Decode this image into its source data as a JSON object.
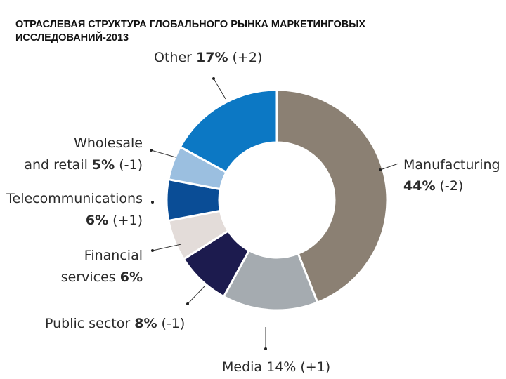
{
  "title_line1": "ОТРАСЛЕВАЯ СТРУКТУРА  ГЛОБАЛЬНОГО  РЫНКА  МАРКЕТИНГОВЫХ",
  "title_line2": "ИССЛЕДОВАНИЙ-2013",
  "chart_data": {
    "type": "pie",
    "variant": "donut",
    "start_angle_deg": 0,
    "direction": "clockwise",
    "segments": [
      {
        "name": "Manufacturing",
        "value": 44,
        "change": "(-2)",
        "color": "#8b8073",
        "label_lines": [
          [
            {
              "t": "Manufacturing",
              "b": false
            }
          ],
          [
            {
              "t": "44%",
              "b": true
            },
            {
              "t": " (-2)",
              "b": false
            }
          ]
        ]
      },
      {
        "name": "Media",
        "value": 14,
        "change": "(+1)",
        "color": "#a5abb0",
        "label_lines": [
          [
            {
              "t": "Media 14% (+1)",
              "b": false
            }
          ]
        ]
      },
      {
        "name": "Public sector",
        "value": 8,
        "change": "(-1)",
        "color": "#1c1b4e",
        "label_lines": [
          [
            {
              "t": "Public sector ",
              "b": false
            },
            {
              "t": "8%",
              "b": true
            },
            {
              "t": " (-1)",
              "b": false
            }
          ]
        ]
      },
      {
        "name": "Financial services",
        "value": 6,
        "change": "",
        "color": "#e3dcd9",
        "label_lines": [
          [
            {
              "t": "Financial",
              "b": false
            }
          ],
          [
            {
              "t": "services ",
              "b": false
            },
            {
              "t": "6%",
              "b": true
            }
          ]
        ]
      },
      {
        "name": "Telecommunications",
        "value": 6,
        "change": "(+1)",
        "color": "#0a4d96",
        "label_lines": [
          [
            {
              "t": "Telecommunications",
              "b": false
            }
          ],
          [
            {
              "t": "6%",
              "b": true
            },
            {
              "t": " (+1)",
              "b": false
            }
          ]
        ]
      },
      {
        "name": "Wholesale and retail",
        "value": 5,
        "change": "(-1)",
        "color": "#9bbfe0",
        "label_lines": [
          [
            {
              "t": "Wholesale",
              "b": false
            }
          ],
          [
            {
              "t": "and retail ",
              "b": false
            },
            {
              "t": "5%",
              "b": true
            },
            {
              "t": " (-1)",
              "b": false
            }
          ]
        ]
      },
      {
        "name": "Other",
        "value": 17,
        "change": "(+2)",
        "color": "#0c78c4",
        "label_lines": [
          [
            {
              "t": "Other ",
              "b": false
            },
            {
              "t": "17%",
              "b": true
            },
            {
              "t": " (+2)",
              "b": false
            }
          ]
        ]
      }
    ]
  }
}
